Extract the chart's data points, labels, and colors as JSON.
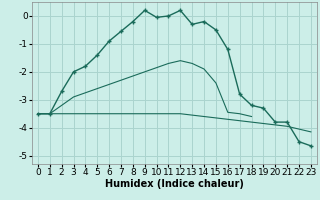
{
  "xlabel": "Humidex (Indice chaleur)",
  "background_color": "#cceee8",
  "grid_color": "#aad4ce",
  "line_color": "#1a6b5a",
  "xlim": [
    -0.5,
    23.5
  ],
  "ylim": [
    -5.3,
    0.5
  ],
  "yticks": [
    0,
    -1,
    -2,
    -3,
    -4,
    -5
  ],
  "xticks": [
    0,
    1,
    2,
    3,
    4,
    5,
    6,
    7,
    8,
    9,
    10,
    11,
    12,
    13,
    14,
    15,
    16,
    17,
    18,
    19,
    20,
    21,
    22,
    23
  ],
  "line1_x": [
    0,
    1,
    2,
    3,
    4,
    5,
    6,
    7,
    8,
    9,
    10,
    11,
    12,
    13,
    14,
    15,
    16,
    17,
    18,
    19,
    20,
    21,
    22,
    23
  ],
  "line1_y": [
    -3.5,
    -3.5,
    -2.7,
    -2.0,
    -1.8,
    -1.4,
    -0.9,
    -0.55,
    -0.2,
    0.2,
    -0.05,
    0.0,
    0.2,
    -0.3,
    -0.2,
    -0.5,
    -1.2,
    -2.8,
    -3.2,
    -3.3,
    -3.8,
    -3.8,
    -4.5,
    -4.65
  ],
  "line2_x": [
    0,
    1,
    2,
    3,
    4,
    5,
    6,
    7,
    8,
    9,
    10,
    11,
    12,
    13,
    14,
    15,
    16,
    17,
    18,
    19,
    20,
    21,
    22,
    23
  ],
  "line2_y": [
    -3.5,
    -3.5,
    -3.5,
    -3.5,
    -3.5,
    -3.5,
    -3.5,
    -3.5,
    -3.5,
    -3.5,
    -3.5,
    -3.5,
    -3.5,
    -3.55,
    -3.6,
    -3.65,
    -3.7,
    -3.75,
    -3.8,
    -3.85,
    -3.9,
    -3.95,
    -4.05,
    -4.15
  ],
  "line3_x": [
    0,
    1,
    2,
    3,
    4,
    5,
    6,
    7,
    8,
    9,
    10,
    11,
    12,
    13,
    14,
    15,
    16,
    17,
    18
  ],
  "line3_y": [
    -3.5,
    -3.5,
    -3.2,
    -2.9,
    -2.75,
    -2.6,
    -2.45,
    -2.3,
    -2.15,
    -2.0,
    -1.85,
    -1.7,
    -1.6,
    -1.7,
    -1.9,
    -2.4,
    -3.45,
    -3.5,
    -3.6
  ],
  "fontsize_label": 7,
  "fontsize_tick": 6.5
}
